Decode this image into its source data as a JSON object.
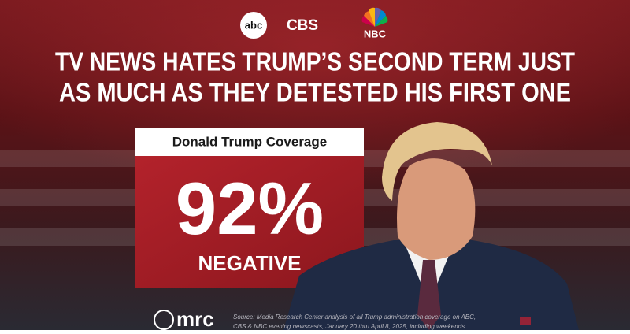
{
  "logos": {
    "abc": "abc",
    "cbs": "CBS",
    "nbc": "NBC"
  },
  "header": {
    "title_line_1": "TV NEWS HATES TRUMP’S SECOND TERM JUST",
    "title_line_2": "AS MUCH AS THEY DETESTED HIS FIRST ONE"
  },
  "stat": {
    "label": "Donald Trump Coverage",
    "value": "92%",
    "caption": "NEGATIVE"
  },
  "footer": {
    "brand": "mrc",
    "source_line_1": "Source: Media Research Center analysis of all Trump administration coverage on ABC,",
    "source_line_2": "CBS & NBC evening newscasts, January 20 thru April 8, 2025, including weekends."
  }
}
